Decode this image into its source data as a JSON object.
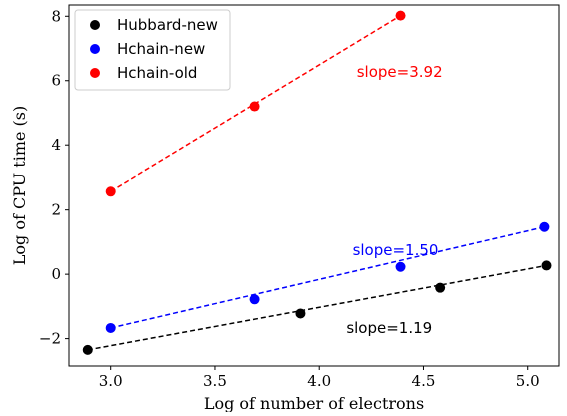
{
  "chart_data": {
    "type": "scatter",
    "xlabel": "Log of number of electrons",
    "ylabel": "Log of CPU time (s)",
    "xlim": [
      2.8,
      5.15
    ],
    "ylim": [
      -2.85,
      8.35
    ],
    "xticks": [
      3.0,
      3.5,
      4.0,
      4.5,
      5.0
    ],
    "xtick_labels": [
      "3.0",
      "3.5",
      "4.0",
      "4.5",
      "5.0"
    ],
    "yticks": [
      -2,
      0,
      2,
      4,
      6,
      8
    ],
    "ytick_labels": [
      "−2",
      "0",
      "2",
      "4",
      "6",
      "8"
    ],
    "grid": false,
    "legend_position": "top-left",
    "series": [
      {
        "name": "Hubbard-new",
        "color": "#000000",
        "x": [
          2.89,
          3.91,
          4.58,
          5.09
        ],
        "y": [
          -2.35,
          -1.22,
          -0.42,
          0.27
        ],
        "fit": {
          "x": [
            2.89,
            5.09
          ],
          "y": [
            -2.35,
            0.27
          ]
        },
        "annotation": "slope=1.19",
        "annotation_at": [
          4.13,
          -1.82
        ]
      },
      {
        "name": "Hchain-new",
        "color": "#0000ff",
        "x": [
          3.0,
          3.69,
          4.39,
          5.08
        ],
        "y": [
          -1.67,
          -0.78,
          0.23,
          1.47
        ],
        "fit": {
          "x": [
            3.0,
            5.08
          ],
          "y": [
            -1.67,
            1.47
          ]
        },
        "annotation": "slope=1.50",
        "annotation_at": [
          4.16,
          0.6
        ]
      },
      {
        "name": "Hchain-old",
        "color": "#ff0000",
        "x": [
          3.0,
          3.69,
          4.39
        ],
        "y": [
          2.57,
          5.2,
          8.02
        ],
        "fit": {
          "x": [
            3.0,
            4.39
          ],
          "y": [
            2.57,
            8.02
          ]
        },
        "annotation": "slope=3.92",
        "annotation_at": [
          4.18,
          6.12
        ]
      }
    ]
  }
}
